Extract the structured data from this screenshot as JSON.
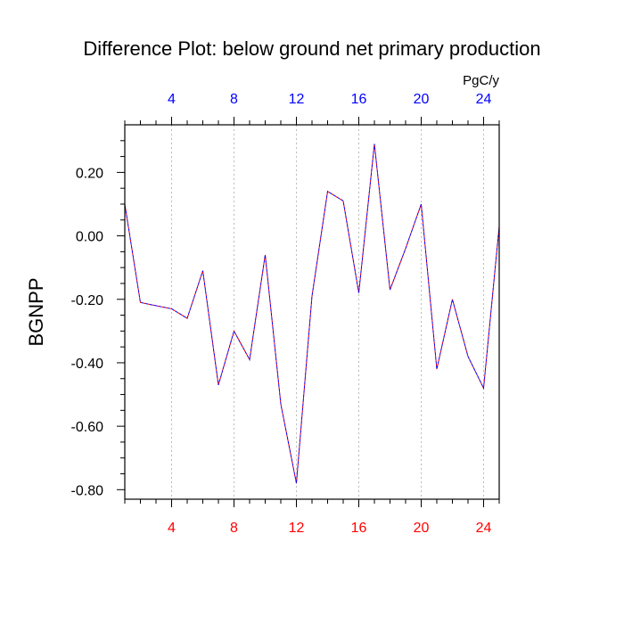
{
  "chart_data": {
    "type": "line",
    "title": "Difference Plot: below ground net primary production",
    "ylabel": "BGNPP",
    "units_label": "PgC/y",
    "xlim": [
      1,
      25
    ],
    "ylim": [
      -0.83,
      0.35
    ],
    "x_ticks": [
      "4",
      "8",
      "12",
      "16",
      "20",
      "24"
    ],
    "x_tick_values": [
      4,
      8,
      12,
      16,
      20,
      24
    ],
    "y_ticks": [
      "0.20",
      "0.00",
      "-0.20",
      "-0.40",
      "-0.60",
      "-0.80"
    ],
    "y_tick_values": [
      0.2,
      0.0,
      -0.2,
      -0.4,
      -0.6,
      -0.8
    ],
    "grid_x": true,
    "series": [
      {
        "x": [
          1,
          2,
          3,
          4,
          5,
          6,
          7,
          8,
          9,
          10,
          11,
          12,
          13,
          14,
          15,
          16,
          17,
          18,
          19,
          20,
          21,
          22,
          23,
          24,
          25
        ],
        "values": [
          0.1,
          -0.21,
          -0.22,
          -0.23,
          -0.26,
          -0.11,
          -0.47,
          -0.3,
          -0.39,
          -0.06,
          -0.53,
          -0.78,
          -0.19,
          0.14,
          0.11,
          -0.18,
          0.29,
          -0.17,
          -0.04,
          0.1,
          -0.42,
          -0.2,
          -0.38,
          -0.48,
          0.03
        ]
      }
    ],
    "colors": {
      "bottom_axis_labels": "#ff0000",
      "top_axis_labels": "#0000ff",
      "line_primary": "#ff0000",
      "line_overlay": "#0000ff",
      "frame": "#000000",
      "grid": "#bbbbbb"
    }
  }
}
